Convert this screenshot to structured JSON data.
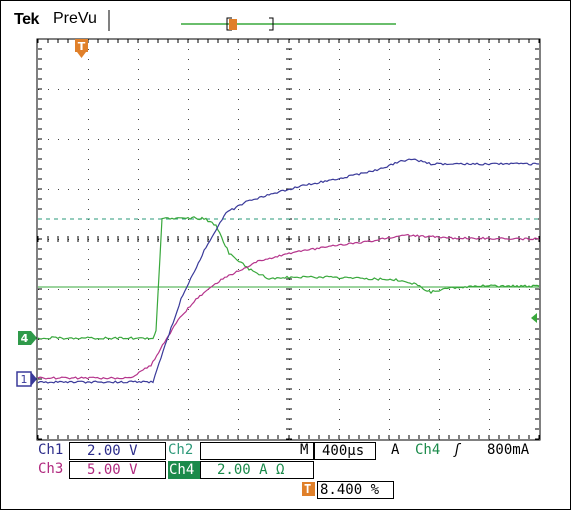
{
  "header": {
    "brand": "Tek",
    "mode": "PreVu"
  },
  "markers": {
    "trigger_glyph": "T",
    "ch4_marker": "4",
    "ch1_marker": "1"
  },
  "readouts": {
    "ch1": {
      "label": "Ch1",
      "value": "2.00 V"
    },
    "ch2": {
      "label": "Ch2",
      "value": ""
    },
    "ch3": {
      "label": "Ch3",
      "value": "5.00 V"
    },
    "ch4": {
      "label": "Ch4",
      "value": "2.00 A Ω"
    },
    "timebase": {
      "prefix": "M",
      "value": "400µs"
    },
    "trigger": {
      "prefix": "A",
      "source": "Ch4",
      "slope_glyph": "ʃ",
      "level": "800mA"
    },
    "trigger_position": {
      "value": "8.400 %"
    }
  },
  "colors": {
    "ch1": "#3a3a9a",
    "ch3": "#b5358c",
    "ch4": "#39a83c",
    "grid": "#444444",
    "trigger_marker": "#e0802a",
    "ch4_marker_fill": "#2f9a4a"
  }
}
